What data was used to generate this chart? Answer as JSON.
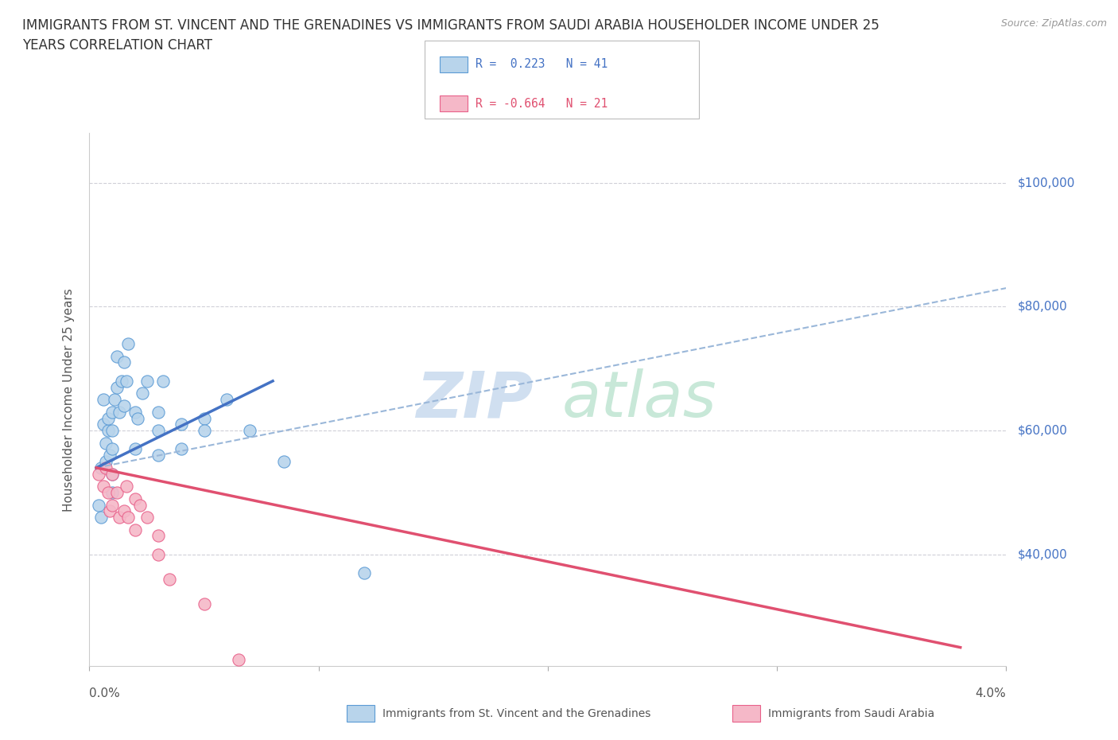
{
  "title_line1": "IMMIGRANTS FROM ST. VINCENT AND THE GRENADINES VS IMMIGRANTS FROM SAUDI ARABIA HOUSEHOLDER INCOME UNDER 25",
  "title_line2": "YEARS CORRELATION CHART",
  "source": "Source: ZipAtlas.com",
  "ylabel": "Householder Income Under 25 years",
  "ytick_labels": [
    "$40,000",
    "$60,000",
    "$80,000",
    "$100,000"
  ],
  "ytick_values": [
    40000,
    60000,
    80000,
    100000
  ],
  "xlim": [
    0.0,
    0.04
  ],
  "ylim": [
    22000,
    108000
  ],
  "color_blue": "#b8d4eb",
  "color_pink": "#f5b8c8",
  "edge_blue": "#5b9bd5",
  "edge_pink": "#e8608a",
  "trend_blue_solid": "#4472c4",
  "trend_blue_dash": "#9ab7d9",
  "trend_pink": "#e05070",
  "grid_color": "#d0d0d8",
  "blue_scatter_x": [
    0.0004,
    0.0005,
    0.0005,
    0.0006,
    0.0006,
    0.0007,
    0.0007,
    0.0008,
    0.0008,
    0.0009,
    0.001,
    0.001,
    0.001,
    0.001,
    0.001,
    0.0011,
    0.0012,
    0.0012,
    0.0013,
    0.0014,
    0.0015,
    0.0015,
    0.0016,
    0.0017,
    0.002,
    0.002,
    0.0021,
    0.0023,
    0.0025,
    0.003,
    0.003,
    0.003,
    0.0032,
    0.004,
    0.004,
    0.005,
    0.005,
    0.006,
    0.007,
    0.0085,
    0.012
  ],
  "blue_scatter_y": [
    48000,
    54000,
    46000,
    65000,
    61000,
    58000,
    55000,
    60000,
    62000,
    56000,
    63000,
    60000,
    57000,
    53000,
    50000,
    65000,
    72000,
    67000,
    63000,
    68000,
    71000,
    64000,
    68000,
    74000,
    63000,
    57000,
    62000,
    66000,
    68000,
    63000,
    60000,
    56000,
    68000,
    61000,
    57000,
    62000,
    60000,
    65000,
    60000,
    55000,
    37000
  ],
  "pink_scatter_x": [
    0.0004,
    0.0006,
    0.0007,
    0.0008,
    0.0009,
    0.001,
    0.001,
    0.0012,
    0.0013,
    0.0015,
    0.0016,
    0.0017,
    0.002,
    0.002,
    0.0022,
    0.0025,
    0.003,
    0.003,
    0.0035,
    0.005,
    0.0065
  ],
  "pink_scatter_y": [
    53000,
    51000,
    54000,
    50000,
    47000,
    53000,
    48000,
    50000,
    46000,
    47000,
    51000,
    46000,
    49000,
    44000,
    48000,
    46000,
    43000,
    40000,
    36000,
    32000,
    23000
  ],
  "blue_solid_trend_x": [
    0.0003,
    0.008
  ],
  "blue_solid_trend_y": [
    54000,
    68000
  ],
  "blue_dash_trend_x": [
    0.0003,
    0.04
  ],
  "blue_dash_trend_y": [
    54000,
    83000
  ],
  "pink_trend_x": [
    0.0003,
    0.038
  ],
  "pink_trend_y": [
    54000,
    25000
  ]
}
